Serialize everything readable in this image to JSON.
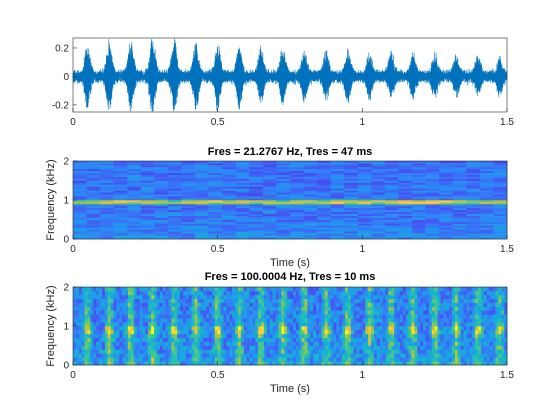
{
  "chart_data": [
    {
      "type": "line",
      "title": "",
      "xlabel": "",
      "ylabel": "",
      "xlim": [
        0,
        1.5
      ],
      "ylim": [
        -0.25,
        0.27
      ],
      "xticks": [
        0,
        0.5,
        1,
        1.5
      ],
      "xtick_labels": [
        "0",
        "0.5",
        "1",
        "1.5"
      ],
      "yticks": [
        0.2,
        0,
        -0.2
      ],
      "ytick_labels": [
        "0.2",
        "0",
        "-0.2"
      ],
      "color": "#0072bd",
      "pulse_times_s": [
        0.05,
        0.125,
        0.2,
        0.275,
        0.35,
        0.425,
        0.5,
        0.575,
        0.65,
        0.725,
        0.8,
        0.875,
        0.95,
        1.025,
        1.1,
        1.175,
        1.25,
        1.325,
        1.4,
        1.475
      ],
      "pulse_peak_amplitudes": [
        0.19,
        0.21,
        0.22,
        0.25,
        0.23,
        0.21,
        0.2,
        0.19,
        0.18,
        0.17,
        0.16,
        0.15,
        0.15,
        0.14,
        0.14,
        0.13,
        0.13,
        0.12,
        0.12,
        0.11
      ],
      "noise_amplitude": 0.04
    },
    {
      "type": "heatmap",
      "title": "Fres = 21.2767 Hz, Tres = 47 ms",
      "xlabel": "Time (s)",
      "ylabel": "Frequency (kHz)",
      "xlim": [
        0,
        1.5
      ],
      "ylim": [
        0,
        2
      ],
      "xticks": [
        0,
        0.5,
        1,
        1.5
      ],
      "xtick_labels": [
        "0",
        "0.5",
        "1",
        "1.5"
      ],
      "yticks": [
        2,
        1,
        0
      ],
      "ytick_labels": [
        "2",
        "1",
        "0"
      ],
      "colormap": "parula",
      "tonal_frequency_khz": 0.95,
      "time_bins": 32,
      "freq_bins": 40
    },
    {
      "type": "heatmap",
      "title": "Fres = 100.0004 Hz, Tres = 10 ms",
      "xlabel": "Time (s)",
      "ylabel": "Frequency (kHz)",
      "xlim": [
        0,
        1.5
      ],
      "ylim": [
        0,
        2
      ],
      "xticks": [
        0,
        0.5,
        1,
        1.5
      ],
      "xtick_labels": [
        "0",
        "0.5",
        "1",
        "1.5"
      ],
      "yticks": [
        2,
        1,
        0
      ],
      "ytick_labels": [
        "2",
        "1",
        "0"
      ],
      "colormap": "parula",
      "pulse_times_s": [
        0.05,
        0.125,
        0.2,
        0.275,
        0.35,
        0.425,
        0.5,
        0.575,
        0.65,
        0.725,
        0.8,
        0.875,
        0.95,
        1.025,
        1.1,
        1.175,
        1.25,
        1.325,
        1.4,
        1.475
      ],
      "tonal_frequency_khz": 0.9,
      "time_bins": 150,
      "freq_bins": 20
    }
  ]
}
